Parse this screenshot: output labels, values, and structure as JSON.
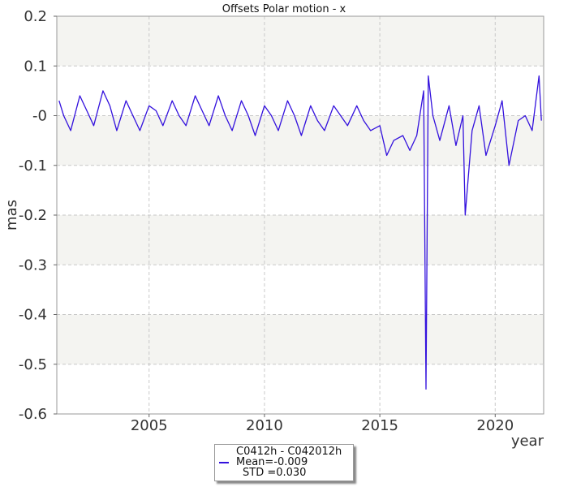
{
  "chart_data": {
    "type": "line",
    "title": "Offsets Polar motion - x",
    "xlabel": "year",
    "ylabel": "mas",
    "xlim": [
      2001.0,
      2022.1
    ],
    "ylim": [
      -0.6,
      0.2
    ],
    "x_ticks": [
      2005,
      2010,
      2015,
      2020
    ],
    "x_tick_labels": [
      "2005",
      "2010",
      "2015",
      "2020"
    ],
    "y_ticks": [
      0.2,
      0.1,
      0.0,
      -0.1,
      -0.2,
      -0.3,
      -0.4,
      -0.5,
      -0.6
    ],
    "y_tick_labels": [
      "0.2",
      "0.1",
      "-0",
      "-0.1",
      "-0.2",
      "-0.3",
      "-0.4",
      "-0.5",
      "-0.6"
    ],
    "grid": true,
    "legend_position": "bottom-center",
    "series": [
      {
        "name": "C0412h - C042012h",
        "color": "#3311dd",
        "stats": {
          "mean": "Mean=-0.009",
          "std": "STD =0.030"
        },
        "x": [
          2001.1,
          2001.3,
          2001.6,
          2002.0,
          2002.3,
          2002.6,
          2003.0,
          2003.3,
          2003.6,
          2004.0,
          2004.3,
          2004.6,
          2005.0,
          2005.3,
          2005.6,
          2006.0,
          2006.3,
          2006.6,
          2007.0,
          2007.3,
          2007.6,
          2008.0,
          2008.3,
          2008.6,
          2009.0,
          2009.3,
          2009.6,
          2010.0,
          2010.3,
          2010.6,
          2011.0,
          2011.3,
          2011.6,
          2012.0,
          2012.3,
          2012.6,
          2013.0,
          2013.3,
          2013.6,
          2014.0,
          2014.3,
          2014.6,
          2015.0,
          2015.3,
          2015.6,
          2016.0,
          2016.3,
          2016.6,
          2016.9,
          2017.0,
          2017.1,
          2017.3,
          2017.6,
          2018.0,
          2018.3,
          2018.6,
          2018.7,
          2019.0,
          2019.3,
          2019.6,
          2020.0,
          2020.3,
          2020.6,
          2021.0,
          2021.3,
          2021.6,
          2021.9,
          2022.0
        ],
        "y": [
          0.03,
          0.0,
          -0.03,
          0.04,
          0.01,
          -0.02,
          0.05,
          0.02,
          -0.03,
          0.03,
          0.0,
          -0.03,
          0.02,
          0.01,
          -0.02,
          0.03,
          0.0,
          -0.02,
          0.04,
          0.01,
          -0.02,
          0.04,
          0.0,
          -0.03,
          0.03,
          0.0,
          -0.04,
          0.02,
          0.0,
          -0.03,
          0.03,
          0.0,
          -0.04,
          0.02,
          -0.01,
          -0.03,
          0.02,
          0.0,
          -0.02,
          0.02,
          -0.01,
          -0.03,
          -0.02,
          -0.08,
          -0.05,
          -0.04,
          -0.07,
          -0.04,
          0.05,
          -0.55,
          0.08,
          0.0,
          -0.05,
          0.02,
          -0.06,
          0.0,
          -0.2,
          -0.03,
          0.02,
          -0.08,
          -0.02,
          0.03,
          -0.1,
          -0.01,
          0.0,
          -0.03,
          0.08,
          -0.01
        ]
      }
    ]
  }
}
